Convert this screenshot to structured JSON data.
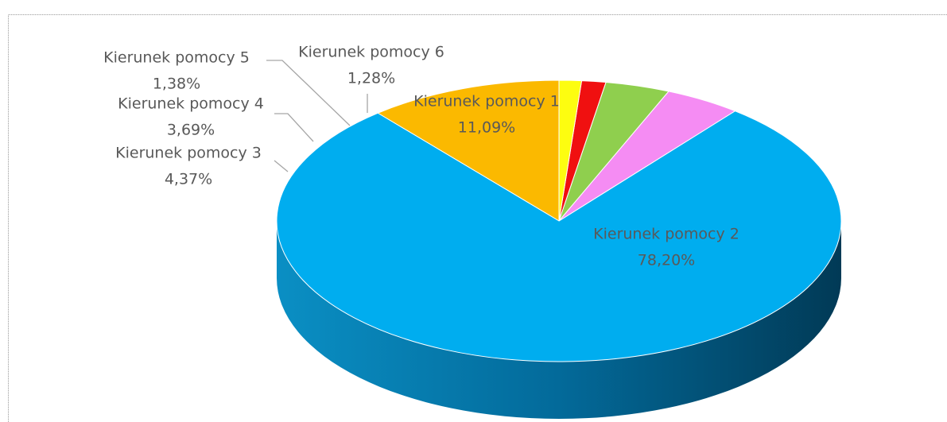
{
  "chart_data": {
    "type": "pie",
    "categories": [
      "Kierunek pomocy 1",
      "Kierunek pomocy 2",
      "Kierunek pomocy 3",
      "Kierunek pomocy 4",
      "Kierunek pomocy 5",
      "Kierunek pomocy 6"
    ],
    "values": [
      11.09,
      78.2,
      4.37,
      3.69,
      1.38,
      1.28
    ],
    "value_labels": [
      "11,09%",
      "78,20%",
      "4,37%",
      "3,69%",
      "1,38%",
      "1,28%"
    ],
    "colors": [
      "#fbb900",
      "#00adef",
      "#f58cf3",
      "#8fcf4e",
      "#f01010",
      "#fdfd10"
    ]
  }
}
